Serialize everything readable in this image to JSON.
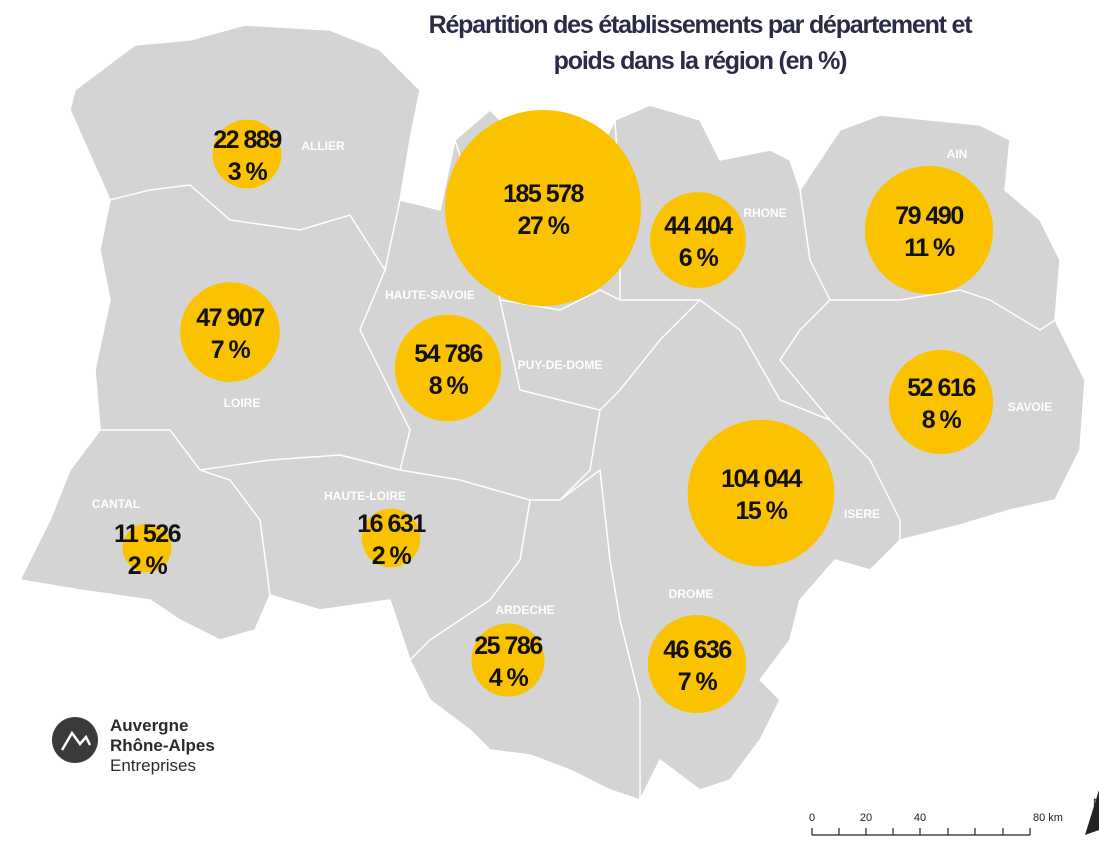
{
  "title": [
    "Répartition des établissements par département et",
    "poids dans la région (en %)"
  ],
  "departments": [
    {
      "name": "ALLIER",
      "value": 22889,
      "value_label": "22 889",
      "share_label": "3 %"
    },
    {
      "name": "RHONE",
      "value": 185578,
      "value_label": "185 578",
      "share_label": "27 %"
    },
    {
      "name": "AIN",
      "value": 44404,
      "value_label": "44 404",
      "share_label": "6 %"
    },
    {
      "name": "HAUTE-SAVOIE",
      "value": 79490,
      "value_label": "79 490",
      "share_label": "11 %"
    },
    {
      "name": "PUY-DE-DOME",
      "value": 47907,
      "value_label": "47 907",
      "share_label": "7 %"
    },
    {
      "name": "LOIRE",
      "value": 54786,
      "value_label": "54 786",
      "share_label": "8 %"
    },
    {
      "name": "SAVOIE",
      "value": 52616,
      "value_label": "52 616",
      "share_label": "8 %"
    },
    {
      "name": "ISERE",
      "value": 104044,
      "value_label": "104 044",
      "share_label": "15 %"
    },
    {
      "name": "CANTAL",
      "value": 11526,
      "value_label": "11 526",
      "share_label": "2 %"
    },
    {
      "name": "HAUTE-LOIRE",
      "value": 16631,
      "value_label": "16 631",
      "share_label": "2 %"
    },
    {
      "name": "ARDECHE",
      "value": 25786,
      "value_label": "25 786",
      "share_label": "4 %"
    },
    {
      "name": "DROME",
      "value": 46636,
      "value_label": "46 636",
      "share_label": "7 %"
    }
  ],
  "scale_bar": [
    "0",
    "20",
    "40",
    "80 km"
  ],
  "north": "N",
  "logo": [
    "Auvergne",
    "Rhône-Alpes",
    "Entreprises"
  ]
}
